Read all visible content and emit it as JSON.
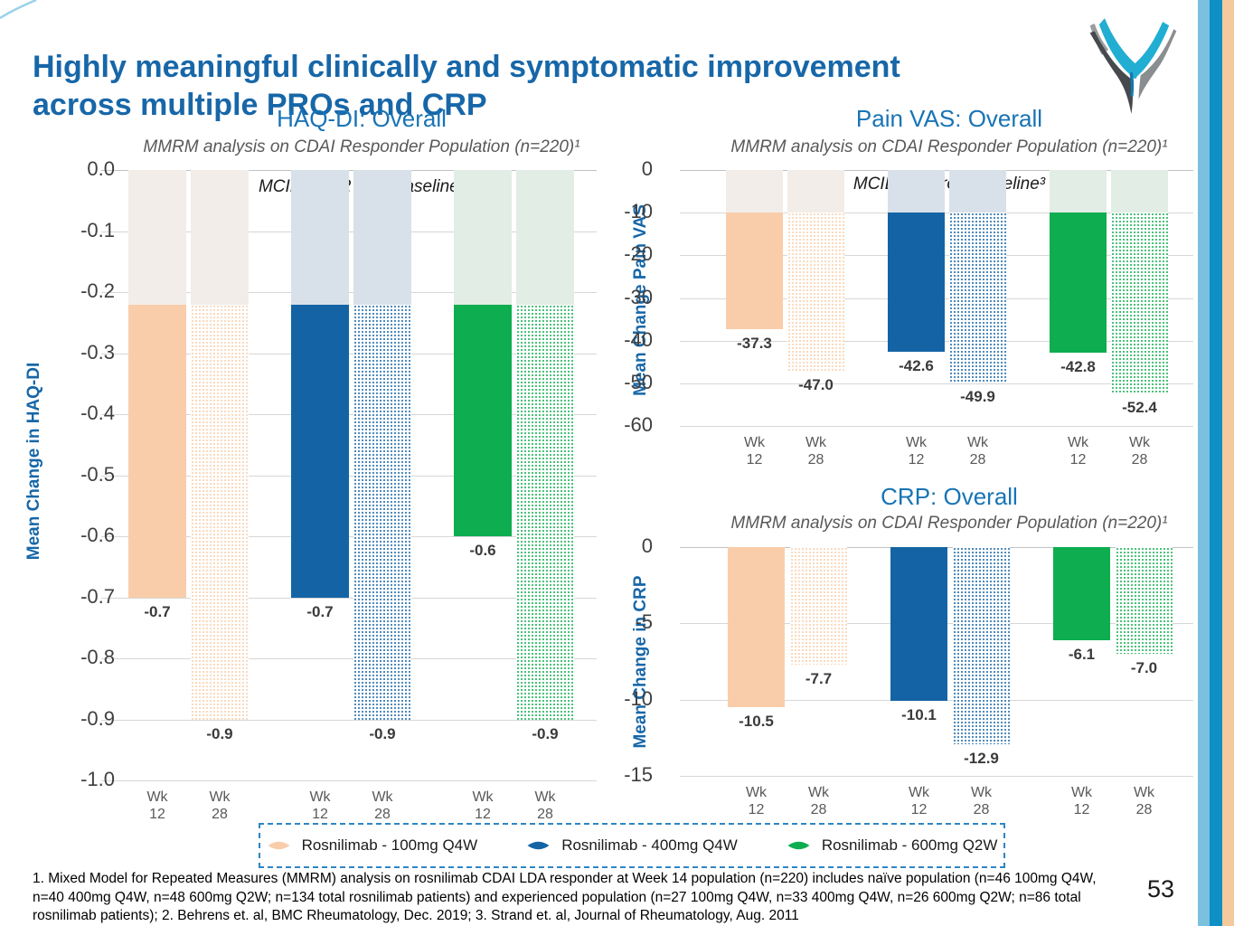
{
  "header": {
    "title_line1": "Highly meaningful clinically and symptomatic improvement",
    "title_line2": "across multiple PROs and CRP",
    "title_color": "#1767A8"
  },
  "logo": {
    "name": "stylized-v-logo",
    "teal": "#21AED2",
    "dark": "#46494D",
    "gray": "#9A9DA0",
    "gray2": "#8B8E91",
    "blue": "#1579AC"
  },
  "edge_stripes": {
    "colors": [
      "#7CC0E0",
      "#0F90C5",
      "#F4C99C"
    ]
  },
  "series": [
    {
      "name": "Rosnilimab - 100mg Q4W",
      "color": "#F9CDAA",
      "light": "#F2EDE8"
    },
    {
      "name": "Rosnilimab - 400mg Q4W",
      "color": "#1464A5",
      "light": "#D8E1E9"
    },
    {
      "name": "Rosnilimab - 600mg Q2W",
      "color": "#0EAD4F",
      "light": "#E2EDE6"
    }
  ],
  "legend": {
    "border_color": "#2E86C4"
  },
  "chart_data": [
    {
      "type": "bar",
      "title": "HAQ-DI: Overall",
      "subtitle": "MMRM analysis on CDAI Responder Population (n=220)¹",
      "ylabel": "Mean Change in HAQ-DI",
      "annotation": "MCID: -0.22 from baseline²",
      "mcid": -0.22,
      "ylim": [
        0,
        -1.0
      ],
      "grid": true,
      "legend_position": "bottom",
      "ytick_labels": [
        "0.0",
        "-0.1",
        "-0.2",
        "-0.3",
        "-0.4",
        "-0.5",
        "-0.6",
        "-0.7",
        "-0.8",
        "-0.9",
        "-1.0"
      ],
      "ytick_values": [
        0,
        -0.1,
        -0.2,
        -0.3,
        -0.4,
        -0.5,
        -0.6,
        -0.7,
        -0.8,
        -0.9,
        -1.0
      ],
      "categories": [
        "Wk 12",
        "Wk 28",
        "Wk 12",
        "Wk 28",
        "Wk 12",
        "Wk 28"
      ],
      "bars": [
        {
          "series": 0,
          "week": "Wk 12",
          "value": -0.7,
          "label": "-0.7",
          "hatched": false
        },
        {
          "series": 0,
          "week": "Wk 28",
          "value": -0.9,
          "label": "-0.9",
          "hatched": true
        },
        {
          "series": 1,
          "week": "Wk 12",
          "value": -0.7,
          "label": "-0.7",
          "hatched": false
        },
        {
          "series": 1,
          "week": "Wk 28",
          "value": -0.9,
          "label": "-0.9",
          "hatched": true
        },
        {
          "series": 2,
          "week": "Wk 12",
          "value": -0.6,
          "label": "-0.6",
          "hatched": false
        },
        {
          "series": 2,
          "week": "Wk 28",
          "value": -0.9,
          "label": "-0.9",
          "hatched": true
        }
      ]
    },
    {
      "type": "bar",
      "title": "Pain VAS: Overall",
      "subtitle": "MMRM analysis on CDAI Responder Population (n=220)¹",
      "ylabel": "Mean Change Pain VAS",
      "annotation": "MCID: -10 from baseline³",
      "mcid": -10,
      "ylim": [
        0,
        -60
      ],
      "grid": true,
      "legend_position": "bottom",
      "ytick_labels": [
        "0",
        "-10",
        "-20",
        "-30",
        "-40",
        "-50",
        "-60"
      ],
      "ytick_values": [
        0,
        -10,
        -20,
        -30,
        -40,
        -50,
        -60
      ],
      "categories": [
        "Wk 12",
        "Wk 28",
        "Wk 12",
        "Wk 28",
        "Wk 12",
        "Wk 28"
      ],
      "bars": [
        {
          "series": 0,
          "week": "Wk 12",
          "value": -37.3,
          "label": "-37.3",
          "hatched": false
        },
        {
          "series": 0,
          "week": "Wk 28",
          "value": -47.0,
          "label": "-47.0",
          "hatched": true
        },
        {
          "series": 1,
          "week": "Wk 12",
          "value": -42.6,
          "label": "-42.6",
          "hatched": false
        },
        {
          "series": 1,
          "week": "Wk 28",
          "value": -49.9,
          "label": "-49.9",
          "hatched": true
        },
        {
          "series": 2,
          "week": "Wk 12",
          "value": -42.8,
          "label": "-42.8",
          "hatched": false
        },
        {
          "series": 2,
          "week": "Wk 28",
          "value": -52.4,
          "label": "-52.4",
          "hatched": true
        }
      ]
    },
    {
      "type": "bar",
      "title": "CRP: Overall",
      "subtitle": "MMRM analysis on CDAI Responder Population (n=220)¹",
      "ylabel": "Mean Change in CRP",
      "annotation": null,
      "mcid": null,
      "ylim": [
        0,
        -15
      ],
      "grid": true,
      "legend_position": "bottom",
      "ytick_labels": [
        "0",
        "-5",
        "-10",
        "-15"
      ],
      "ytick_values": [
        0,
        -5,
        -10,
        -15
      ],
      "categories": [
        "Wk 12",
        "Wk 28",
        "Wk 12",
        "Wk 28",
        "Wk 12",
        "Wk 28"
      ],
      "bars": [
        {
          "series": 0,
          "week": "Wk 12",
          "value": -10.5,
          "label": "-10.5",
          "hatched": false
        },
        {
          "series": 0,
          "week": "Wk 28",
          "value": -7.7,
          "label": "-7.7",
          "hatched": true
        },
        {
          "series": 1,
          "week": "Wk 12",
          "value": -10.1,
          "label": "-10.1",
          "hatched": false
        },
        {
          "series": 1,
          "week": "Wk 28",
          "value": -12.9,
          "label": "-12.9",
          "hatched": true
        },
        {
          "series": 2,
          "week": "Wk 12",
          "value": -6.1,
          "label": "-6.1",
          "hatched": false
        },
        {
          "series": 2,
          "week": "Wk 28",
          "value": -7.0,
          "label": "-7.0",
          "hatched": true
        }
      ]
    }
  ],
  "footnote": {
    "text": "1. Mixed Model for Repeated Measures (MMRM) analysis on rosnilimab CDAI LDA responder at Week 14 population (n=220) includes naïve population (n=46 100mg Q4W, n=40 400mg Q4W, n=48 600mg Q2W; n=134 total rosnilimab patients) and experienced population (n=27 100mg Q4W, n=33 400mg Q4W, n=26 600mg Q2W; n=86 total rosnilimab patients); 2. Behrens et. al, BMC Rheumatology, Dec. 2019; 3. Strand et. al, Journal of Rheumatology, Aug. 2011"
  },
  "footer": {
    "page_number": "53"
  }
}
